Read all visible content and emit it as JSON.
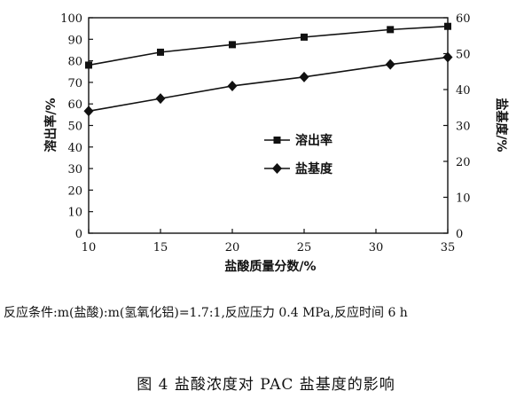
{
  "chart_data": {
    "type": "line",
    "x": [
      10,
      15,
      20,
      25,
      31,
      35
    ],
    "xlim": [
      10,
      35
    ],
    "xticks": [
      10,
      15,
      20,
      25,
      30,
      35
    ],
    "xlabel": "盐酸质量分数/%",
    "ylabel_left": "溶出率/%",
    "ylabel_right": "盐基度/%",
    "ylim_left": [
      0,
      100
    ],
    "ylim_right": [
      0,
      60
    ],
    "yticks_left": [
      0,
      10,
      20,
      30,
      40,
      50,
      60,
      70,
      80,
      90,
      100
    ],
    "yticks_right": [
      0,
      10,
      20,
      30,
      40,
      50,
      60
    ],
    "grid": false,
    "legend_position": "center-right",
    "series": [
      {
        "name": "溶出率",
        "axis": "left",
        "marker": "square",
        "color": "#111111",
        "values": [
          78,
          84,
          87.5,
          91,
          94.5,
          96
        ]
      },
      {
        "name": "盐基度",
        "axis": "right",
        "marker": "diamond",
        "color": "#111111",
        "values": [
          34,
          37.5,
          41,
          43.5,
          47,
          49
        ]
      }
    ]
  },
  "note": "反应条件:m(盐酸):m(氢氧化铝)=1.7:1,反应压力 0.4 MPa,反应时间 6 h",
  "caption": "图 4   盐酸浓度对 PAC 盐基度的影响"
}
